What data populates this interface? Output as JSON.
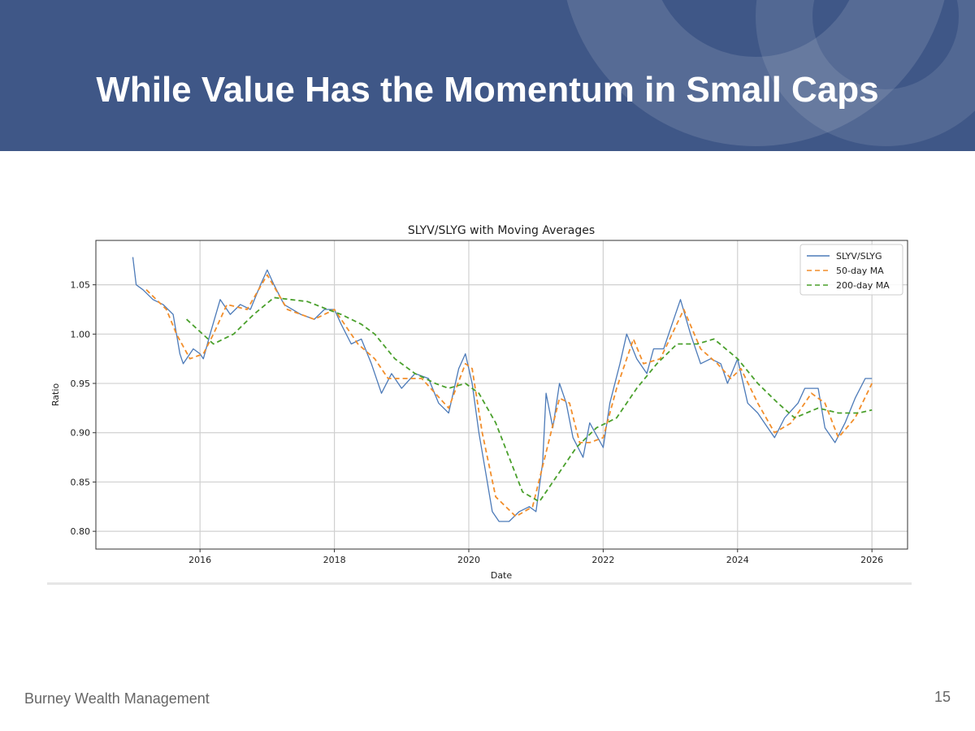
{
  "slide": {
    "title": "While Value Has the Momentum in Small Caps",
    "footer": "Burney Wealth Management",
    "page_number": "15",
    "header_color": "#3f5787"
  },
  "chart_data": {
    "type": "line",
    "title": "SLYV/SLYG with Moving Averages",
    "xlabel": "Date",
    "ylabel": "Ratio",
    "xlim": [
      2014.45,
      2026.53
    ],
    "ylim": [
      0.782,
      1.095
    ],
    "xticks": [
      2016,
      2018,
      2020,
      2022,
      2024,
      2026
    ],
    "xtick_labels": [
      "2016",
      "2018",
      "2020",
      "2022",
      "2024",
      "2026"
    ],
    "yticks": [
      0.8,
      0.85,
      0.9,
      0.95,
      1.0,
      1.05
    ],
    "ytick_labels": [
      "0.80",
      "0.85",
      "0.90",
      "0.95",
      "1.00",
      "1.05"
    ],
    "grid": true,
    "legend": "top-right",
    "series": [
      {
        "name": "SLYV/SLYG",
        "color": "#4c7ab8",
        "style": "solid",
        "x": [
          2015.0,
          2015.05,
          2015.15,
          2015.3,
          2015.45,
          2015.6,
          2015.7,
          2015.75,
          2015.9,
          2016.0,
          2016.05,
          2016.15,
          2016.3,
          2016.45,
          2016.6,
          2016.75,
          2016.9,
          2017.0,
          2017.1,
          2017.25,
          2017.5,
          2017.7,
          2017.85,
          2018.0,
          2018.1,
          2018.25,
          2018.4,
          2018.55,
          2018.7,
          2018.85,
          2019.0,
          2019.2,
          2019.4,
          2019.55,
          2019.7,
          2019.85,
          2019.95,
          2020.05,
          2020.15,
          2020.25,
          2020.35,
          2020.45,
          2020.6,
          2020.75,
          2020.9,
          2021.0,
          2021.1,
          2021.15,
          2021.25,
          2021.35,
          2021.45,
          2021.55,
          2021.7,
          2021.8,
          2022.0,
          2022.1,
          2022.25,
          2022.35,
          2022.5,
          2022.65,
          2022.75,
          2022.9,
          2023.05,
          2023.15,
          2023.3,
          2023.45,
          2023.6,
          2023.75,
          2023.85,
          2024.0,
          2024.15,
          2024.3,
          2024.45,
          2024.55,
          2024.7,
          2024.9,
          2025.0,
          2025.2,
          2025.3,
          2025.45,
          2025.6,
          2025.75,
          2025.9,
          2026.0
        ],
        "y": [
          1.078,
          1.05,
          1.045,
          1.035,
          1.03,
          1.02,
          0.98,
          0.97,
          0.985,
          0.98,
          0.975,
          1.0,
          1.035,
          1.02,
          1.03,
          1.025,
          1.05,
          1.065,
          1.05,
          1.03,
          1.02,
          1.015,
          1.025,
          1.025,
          1.01,
          0.99,
          0.995,
          0.97,
          0.94,
          0.96,
          0.945,
          0.96,
          0.955,
          0.93,
          0.92,
          0.965,
          0.98,
          0.95,
          0.9,
          0.86,
          0.82,
          0.81,
          0.81,
          0.82,
          0.825,
          0.82,
          0.87,
          0.94,
          0.905,
          0.95,
          0.93,
          0.895,
          0.875,
          0.91,
          0.885,
          0.93,
          0.97,
          1.0,
          0.975,
          0.96,
          0.985,
          0.985,
          1.015,
          1.035,
          1.0,
          0.97,
          0.975,
          0.97,
          0.95,
          0.975,
          0.93,
          0.92,
          0.905,
          0.895,
          0.915,
          0.93,
          0.945,
          0.945,
          0.905,
          0.89,
          0.91,
          0.935,
          0.955,
          0.955
        ]
      },
      {
        "name": "50-day MA",
        "color": "#f28e2b",
        "style": "dashed",
        "x": [
          2015.2,
          2015.5,
          2015.65,
          2015.85,
          2016.05,
          2016.2,
          2016.4,
          2016.7,
          2017.0,
          2017.3,
          2017.7,
          2018.0,
          2018.35,
          2018.6,
          2018.8,
          2019.3,
          2019.7,
          2019.95,
          2020.05,
          2020.2,
          2020.4,
          2020.7,
          2020.95,
          2021.15,
          2021.35,
          2021.5,
          2021.65,
          2021.8,
          2022.0,
          2022.2,
          2022.45,
          2022.6,
          2022.85,
          2023.2,
          2023.45,
          2023.7,
          2023.9,
          2024.05,
          2024.3,
          2024.55,
          2024.8,
          2025.1,
          2025.3,
          2025.5,
          2025.75,
          2026.0
        ],
        "y": [
          1.045,
          1.025,
          1.0,
          0.975,
          0.98,
          1.0,
          1.03,
          1.025,
          1.06,
          1.025,
          1.015,
          1.025,
          0.99,
          0.975,
          0.955,
          0.955,
          0.925,
          0.97,
          0.965,
          0.9,
          0.835,
          0.815,
          0.825,
          0.88,
          0.935,
          0.93,
          0.89,
          0.89,
          0.895,
          0.945,
          0.995,
          0.97,
          0.975,
          1.025,
          0.985,
          0.97,
          0.955,
          0.965,
          0.93,
          0.9,
          0.91,
          0.94,
          0.93,
          0.895,
          0.915,
          0.95
        ]
      },
      {
        "name": "200-day MA",
        "color": "#4aa02c",
        "style": "dashed",
        "x": [
          2015.8,
          2016.2,
          2016.5,
          2016.8,
          2017.1,
          2017.6,
          2017.9,
          2018.1,
          2018.4,
          2018.6,
          2018.9,
          2019.2,
          2019.5,
          2019.7,
          2019.95,
          2020.15,
          2020.4,
          2020.6,
          2020.8,
          2021.05,
          2021.3,
          2021.6,
          2021.9,
          2022.2,
          2022.5,
          2022.8,
          2023.1,
          2023.4,
          2023.65,
          2024.0,
          2024.3,
          2024.6,
          2024.85,
          2025.2,
          2025.5,
          2025.8,
          2026.0
        ],
        "y": [
          1.015,
          0.99,
          1.0,
          1.02,
          1.037,
          1.033,
          1.025,
          1.02,
          1.01,
          1.0,
          0.975,
          0.96,
          0.95,
          0.945,
          0.95,
          0.94,
          0.91,
          0.875,
          0.84,
          0.83,
          0.855,
          0.885,
          0.905,
          0.915,
          0.945,
          0.97,
          0.99,
          0.99,
          0.995,
          0.975,
          0.95,
          0.93,
          0.915,
          0.925,
          0.92,
          0.92,
          0.923
        ]
      }
    ]
  }
}
